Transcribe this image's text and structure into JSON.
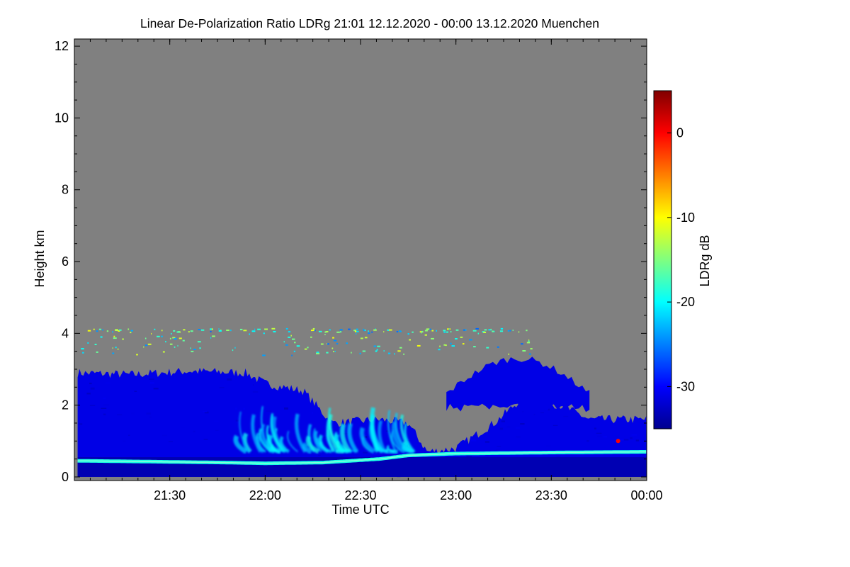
{
  "chart_data": {
    "type": "heatmap",
    "title": "Linear De-Polarization Ratio LDRg   21:01 12.12.2020 - 00:00 13.12.2020 Muenchen",
    "xlabel": "Time UTC",
    "ylabel": "Height km",
    "x_start_hours": 21.017,
    "x_end_hours": 24.0,
    "xlim_hours": [
      21.0,
      24.0
    ],
    "ylim_km": [
      -0.1,
      12.2
    ],
    "x_ticks": [
      {
        "hours": 21.5,
        "label": "21:30"
      },
      {
        "hours": 22.0,
        "label": "22:00"
      },
      {
        "hours": 22.5,
        "label": "22:30"
      },
      {
        "hours": 23.0,
        "label": "23:00"
      },
      {
        "hours": 23.5,
        "label": "23:30"
      },
      {
        "hours": 24.0,
        "label": "00:00"
      }
    ],
    "y_ticks": [
      {
        "km": 0,
        "label": "0"
      },
      {
        "km": 2,
        "label": "2"
      },
      {
        "km": 4,
        "label": "4"
      },
      {
        "km": 6,
        "label": "6"
      },
      {
        "km": 8,
        "label": "8"
      },
      {
        "km": 10,
        "label": "10"
      },
      {
        "km": 12,
        "label": "12"
      }
    ],
    "colorbar": {
      "label": "LDRg dB",
      "range_db": [
        -35,
        5
      ],
      "ticks": [
        {
          "db": 0,
          "label": "0"
        },
        {
          "db": -10,
          "label": "-10"
        },
        {
          "db": -20,
          "label": "-20"
        },
        {
          "db": -30,
          "label": "-30"
        }
      ],
      "colormap": "jet"
    },
    "no_data_color": "#808080",
    "features": [
      {
        "name": "dense layer (upper boundary)",
        "t_start": 21.017,
        "t_end": 24.0,
        "top_km_profile": [
          [
            21.02,
            2.9
          ],
          [
            21.3,
            2.85
          ],
          [
            21.6,
            2.95
          ],
          [
            21.9,
            2.9
          ],
          [
            22.0,
            2.6
          ],
          [
            22.2,
            2.4
          ],
          [
            22.35,
            1.5
          ],
          [
            22.6,
            1.6
          ],
          [
            22.75,
            1.5
          ],
          [
            22.85,
            0.7
          ],
          [
            23.0,
            0.8
          ],
          [
            23.2,
            1.5
          ],
          [
            23.35,
            2.2
          ],
          [
            23.55,
            2.0
          ],
          [
            23.7,
            1.6
          ],
          [
            24.0,
            1.6
          ]
        ],
        "ldr_db": -31
      },
      {
        "name": "lower layer",
        "t_start": 21.017,
        "t_end": 24.0,
        "base_km": 0.0,
        "top_km": 0.55,
        "ldr_db": -33
      },
      {
        "name": "bright band",
        "t_start": 21.017,
        "t_end": 24.0,
        "height_km_profile": [
          [
            21.02,
            0.45
          ],
          [
            21.5,
            0.42
          ],
          [
            21.8,
            0.4
          ],
          [
            22.0,
            0.38
          ],
          [
            22.3,
            0.4
          ],
          [
            22.6,
            0.5
          ],
          [
            22.75,
            0.6
          ],
          [
            23.0,
            0.65
          ],
          [
            23.5,
            0.68
          ],
          [
            24.0,
            0.7
          ]
        ],
        "ldr_db": -19
      },
      {
        "name": "fall streaks",
        "t_start": 21.85,
        "t_end": 22.75,
        "base_km": 0.7,
        "top_km": 2.0,
        "ldr_db": -22
      },
      {
        "name": "upper cloud patch",
        "t_start": 22.95,
        "t_end": 23.7,
        "base_km": 1.8,
        "top_km": 3.3,
        "ldr_db": -31
      },
      {
        "name": "upper speckle layer",
        "t_start": 21.02,
        "t_end": 23.4,
        "base_km": 3.4,
        "top_km": 4.15,
        "ldr_db": -14
      },
      {
        "name": "enhanced LDR spot",
        "t": 23.85,
        "height_km": 1.0,
        "ldr_db": 0
      }
    ]
  }
}
